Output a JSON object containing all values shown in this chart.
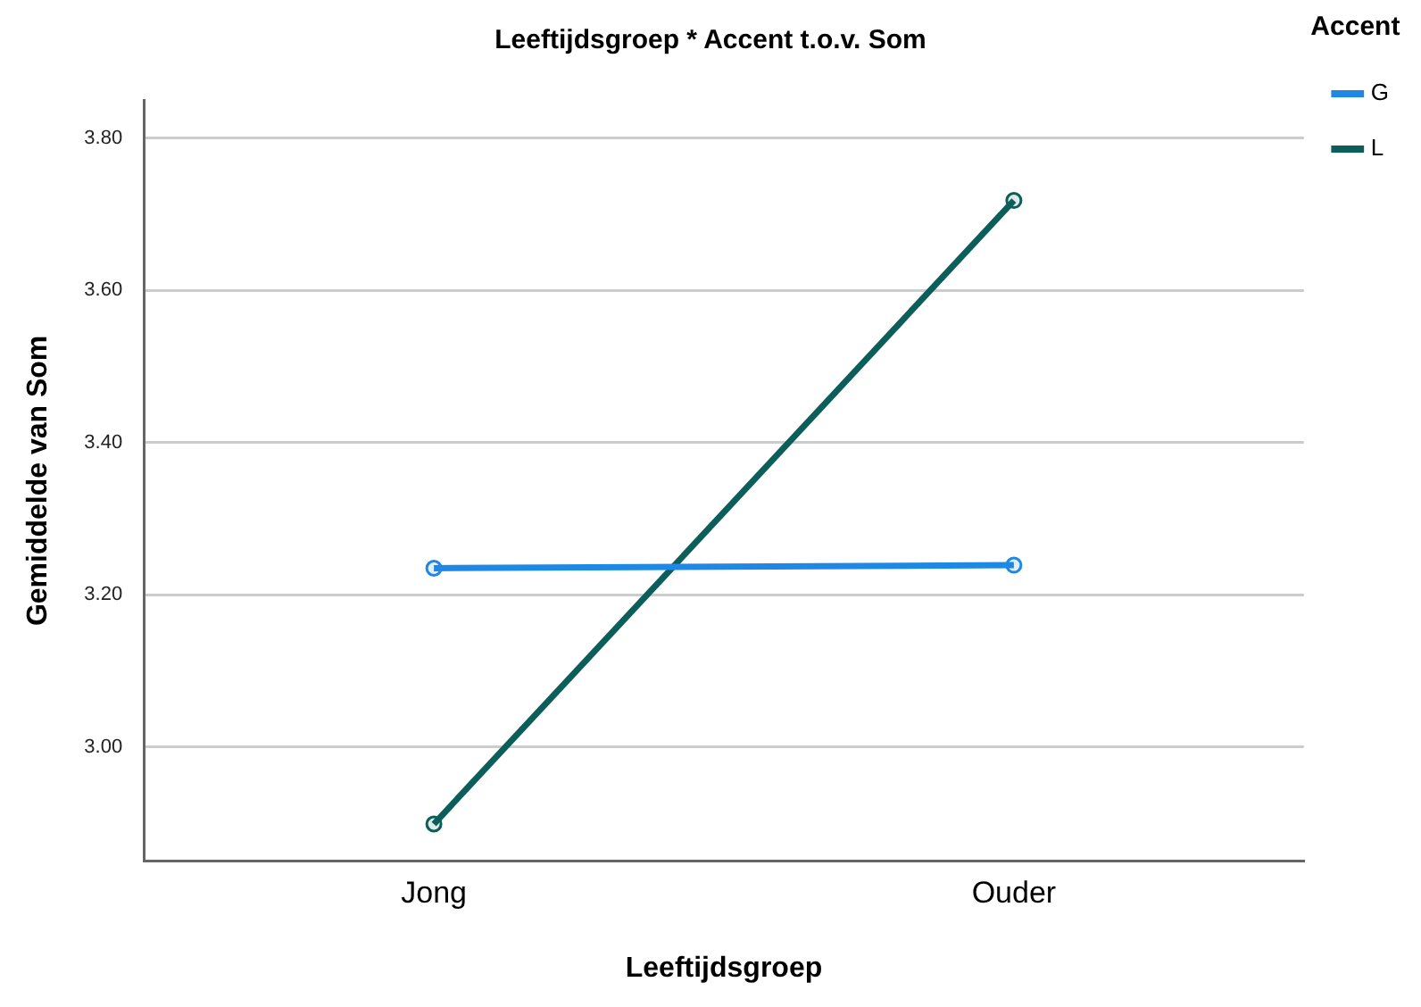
{
  "chart_data": {
    "type": "line",
    "title": "Leeftijdsgroep * Accent t.o.v. Som",
    "xlabel": "Leeftijdsgroep",
    "ylabel": "Gemiddelde van Som",
    "legend_title": "Accent",
    "categories": [
      "Jong",
      "Ouder"
    ],
    "series": [
      {
        "name": "G",
        "color": "#1e88e5",
        "values": [
          3.235,
          3.239
        ]
      },
      {
        "name": "L",
        "color": "#0b5e5a",
        "values": [
          2.899,
          3.718
        ]
      }
    ],
    "ylim": [
      2.85,
      3.85
    ],
    "yticks": [
      {
        "value": 3.0,
        "label": "3.00"
      },
      {
        "value": 3.2,
        "label": "3.20"
      },
      {
        "value": 3.4,
        "label": "3.40"
      },
      {
        "value": 3.6,
        "label": "3.60"
      },
      {
        "value": 3.8,
        "label": "3.80"
      }
    ],
    "grid": "y",
    "legend": "top right",
    "marker": "circle",
    "line_style": "solid"
  }
}
